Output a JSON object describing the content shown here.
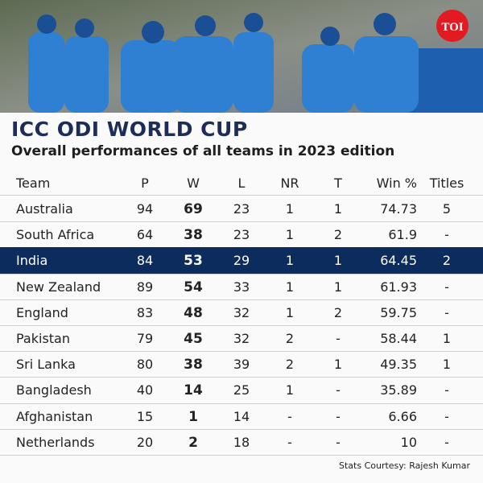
{
  "logo": "TOI",
  "header": {
    "title": "ICC ODI WORLD CUP",
    "subtitle": "Overall performances of all teams in 2023 edition"
  },
  "table": {
    "columns": [
      "Team",
      "P",
      "W",
      "L",
      "NR",
      "T",
      "Win %",
      "Titles"
    ],
    "highlight_row": 2,
    "rows": [
      [
        "Australia",
        "94",
        "69",
        "23",
        "1",
        "1",
        "74.73",
        "5"
      ],
      [
        "South Africa",
        "64",
        "38",
        "23",
        "1",
        "2",
        "61.9",
        "-"
      ],
      [
        "India",
        "84",
        "53",
        "29",
        "1",
        "1",
        "64.45",
        "2"
      ],
      [
        "New Zealand",
        "89",
        "54",
        "33",
        "1",
        "1",
        "61.93",
        "-"
      ],
      [
        "England",
        "83",
        "48",
        "32",
        "1",
        "2",
        "59.75",
        "-"
      ],
      [
        "Pakistan",
        "79",
        "45",
        "32",
        "2",
        "-",
        "58.44",
        "1"
      ],
      [
        "Sri Lanka",
        "80",
        "38",
        "39",
        "2",
        "1",
        "49.35",
        "1"
      ],
      [
        "Bangladesh",
        "40",
        "14",
        "25",
        "1",
        "-",
        "35.89",
        "-"
      ],
      [
        "Afghanistan",
        "15",
        "1",
        "14",
        "-",
        "-",
        "6.66",
        "-"
      ],
      [
        "Netherlands",
        "20",
        "2",
        "18",
        "-",
        "-",
        "10",
        "-"
      ]
    ]
  },
  "footer": {
    "credit": "Stats Courtesy: Rajesh Kumar"
  }
}
